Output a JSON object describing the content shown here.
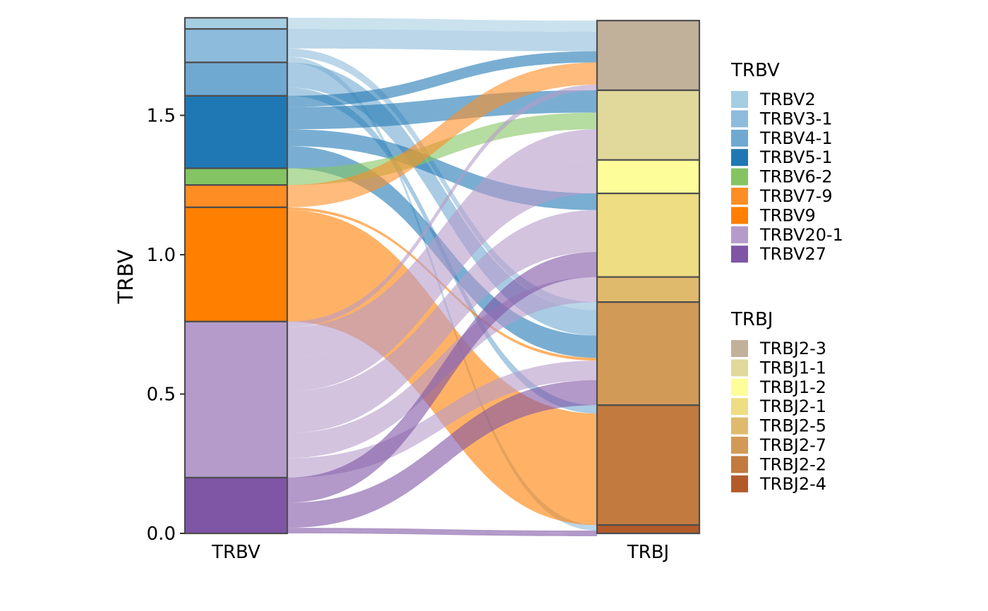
{
  "chart_data": {
    "type": "alluvial",
    "ylabel": "TRBV",
    "ylim": [
      0,
      1.85
    ],
    "yticks": [
      "0.0",
      "0.5",
      "1.0",
      "1.5"
    ],
    "ytick_values": [
      0,
      0.5,
      1.0,
      1.5
    ],
    "grid": false,
    "legend_placement": "right",
    "axes": [
      {
        "name": "TRBV",
        "label": "TRBV"
      },
      {
        "name": "TRBJ",
        "label": "TRBJ"
      }
    ],
    "strata": {
      "TRBV": [
        {
          "name": "TRBV2",
          "value": 0.04,
          "color": "#A6CEE3"
        },
        {
          "name": "TRBV3-1",
          "value": 0.12,
          "color": "#8DBBDB"
        },
        {
          "name": "TRBV4-1",
          "value": 0.12,
          "color": "#6FA8D1"
        },
        {
          "name": "TRBV5-1",
          "value": 0.26,
          "color": "#1F78B4"
        },
        {
          "name": "TRBV6-2",
          "value": 0.06,
          "color": "#84C462"
        },
        {
          "name": "TRBV7-9",
          "value": 0.08,
          "color": "#FE8D24"
        },
        {
          "name": "TRBV9",
          "value": 0.41,
          "color": "#FF7F00"
        },
        {
          "name": "TRBV20-1",
          "value": 0.56,
          "color": "#B59BCA"
        },
        {
          "name": "TRBV27",
          "value": 0.2,
          "color": "#7F55A5"
        }
      ],
      "TRBJ": [
        {
          "name": "TRBJ2-3",
          "value": 0.25,
          "color": "#C2B19A"
        },
        {
          "name": "TRBJ1-1",
          "value": 0.25,
          "color": "#E1D89B"
        },
        {
          "name": "TRBJ1-2",
          "value": 0.12,
          "color": "#FDFD99"
        },
        {
          "name": "TRBJ2-1",
          "value": 0.3,
          "color": "#EEDD82"
        },
        {
          "name": "TRBJ2-5",
          "value": 0.09,
          "color": "#E0BA6C"
        },
        {
          "name": "TRBJ2-7",
          "value": 0.37,
          "color": "#D19A57"
        },
        {
          "name": "TRBJ2-2",
          "value": 0.43,
          "color": "#C27A3E"
        },
        {
          "name": "TRBJ2-4",
          "value": 0.03,
          "color": "#B35A2A"
        }
      ]
    },
    "flows": [
      {
        "from": "TRBV2",
        "to": "TRBJ2-3",
        "value": 0.04
      },
      {
        "from": "TRBV3-1",
        "to": "TRBJ2-3",
        "value": 0.07
      },
      {
        "from": "TRBV3-1",
        "to": "TRBJ2-7",
        "value": 0.03
      },
      {
        "from": "TRBV3-1",
        "to": "TRBJ2-4",
        "value": 0.02
      },
      {
        "from": "TRBV4-1",
        "to": "TRBJ2-2",
        "value": 0.03
      },
      {
        "from": "TRBV4-1",
        "to": "TRBJ2-7",
        "value": 0.09
      },
      {
        "from": "TRBV5-1",
        "to": "TRBJ2-3",
        "value": 0.04
      },
      {
        "from": "TRBV5-1",
        "to": "TRBJ1-1",
        "value": 0.08
      },
      {
        "from": "TRBV5-1",
        "to": "TRBJ2-1",
        "value": 0.06
      },
      {
        "from": "TRBV5-1",
        "to": "TRBJ2-7",
        "value": 0.08
      },
      {
        "from": "TRBV6-2",
        "to": "TRBJ1-1",
        "value": 0.06
      },
      {
        "from": "TRBV7-9",
        "to": "TRBJ2-3",
        "value": 0.08
      },
      {
        "from": "TRBV9",
        "to": "TRBJ2-7",
        "value": 0.01
      },
      {
        "from": "TRBV9",
        "to": "TRBJ2-2",
        "value": 0.4
      },
      {
        "from": "TRBV20-1",
        "to": "TRBJ2-3",
        "value": 0.02
      },
      {
        "from": "TRBV20-1",
        "to": "TRBJ1-1",
        "value": 0.11
      },
      {
        "from": "TRBV20-1",
        "to": "TRBJ1-2",
        "value": 0.12
      },
      {
        "from": "TRBV20-1",
        "to": "TRBJ2-1",
        "value": 0.15
      },
      {
        "from": "TRBV20-1",
        "to": "TRBJ2-5",
        "value": 0.09
      },
      {
        "from": "TRBV20-1",
        "to": "TRBJ2-7",
        "value": 0.07
      },
      {
        "from": "TRBV27",
        "to": "TRBJ2-1",
        "value": 0.09
      },
      {
        "from": "TRBV27",
        "to": "TRBJ2-7",
        "value": 0.09
      },
      {
        "from": "TRBV27",
        "to": "TRBJ2-4",
        "value": 0.01
      },
      {
        "from": "TRBV27",
        "to": "TRBJ2-4",
        "value": 0.01
      }
    ],
    "legends": [
      {
        "title": "TRBV",
        "entries": [
          "TRBV2",
          "TRBV3-1",
          "TRBV4-1",
          "TRBV5-1",
          "TRBV6-2",
          "TRBV7-9",
          "TRBV9",
          "TRBV20-1",
          "TRBV27"
        ]
      },
      {
        "title": "TRBJ",
        "entries": [
          "TRBJ2-3",
          "TRBJ1-1",
          "TRBJ1-2",
          "TRBJ2-1",
          "TRBJ2-5",
          "TRBJ2-7",
          "TRBJ2-2",
          "TRBJ2-4"
        ]
      }
    ]
  }
}
